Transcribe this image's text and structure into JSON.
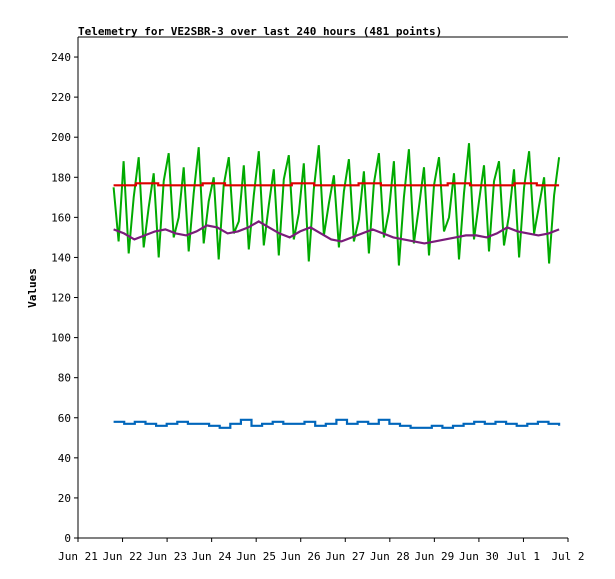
{
  "chart_data": {
    "type": "line",
    "title": "Telemetry for VE2SBR-3 over last 240 hours (481 points)",
    "xlabel": "",
    "ylabel": "Values",
    "ylim": [
      0,
      250
    ],
    "yticks": [
      0,
      20,
      40,
      60,
      80,
      100,
      120,
      140,
      160,
      180,
      200,
      220,
      240
    ],
    "xlim_days": [
      21,
      32
    ],
    "xticks": [
      {
        "day": 21,
        "label": "Jun 21"
      },
      {
        "day": 22,
        "label": "Jun 22"
      },
      {
        "day": 23,
        "label": "Jun 23"
      },
      {
        "day": 24,
        "label": "Jun 24"
      },
      {
        "day": 25,
        "label": "Jun 25"
      },
      {
        "day": 26,
        "label": "Jun 26"
      },
      {
        "day": 27,
        "label": "Jun 27"
      },
      {
        "day": 28,
        "label": "Jun 28"
      },
      {
        "day": 29,
        "label": "Jun 29"
      },
      {
        "day": 30,
        "label": "Jun 30"
      },
      {
        "day": 31,
        "label": "Jul 1"
      },
      {
        "day": 32,
        "label": "Jul 2"
      }
    ],
    "x_range_days": [
      21.8,
      31.8
    ],
    "grid": false,
    "legend": "none",
    "series": [
      {
        "color": "#00aa00",
        "style": "noisy-oscillation",
        "band": [
          137,
          197
        ],
        "values": [
          175,
          148,
          188,
          142,
          170,
          190,
          145,
          165,
          182,
          140,
          178,
          192,
          150,
          160,
          185,
          143,
          172,
          195,
          147,
          168,
          180,
          139,
          176,
          190,
          152,
          158,
          186,
          144,
          171,
          193,
          146,
          166,
          184,
          141,
          179,
          191,
          149,
          162,
          187,
          138,
          174,
          196,
          151,
          167,
          181,
          145,
          173,
          189,
          148,
          159,
          183,
          142,
          177,
          192,
          150,
          163,
          188,
          136,
          170,
          194,
          147,
          165,
          185,
          141,
          176,
          190,
          153,
          160,
          182,
          139,
          172,
          197,
          149,
          168,
          186,
          143,
          178,
          188,
          146,
          161,
          184,
          140,
          175,
          193,
          152,
          166,
          180,
          137,
          171,
          190
        ]
      },
      {
        "color": "#dd0000",
        "style": "flat",
        "values": [
          176,
          177,
          176,
          176,
          177,
          176,
          176,
          176,
          177,
          176,
          176,
          177,
          176,
          176,
          176,
          177,
          176,
          176,
          177,
          176,
          176
        ]
      },
      {
        "color": "#7a1c7a",
        "style": "smooth",
        "values": [
          154,
          152,
          149,
          151,
          153,
          154,
          152,
          151,
          153,
          156,
          155,
          152,
          153,
          155,
          158,
          155,
          152,
          150,
          153,
          155,
          152,
          149,
          148,
          150,
          152,
          154,
          152,
          150,
          149,
          148,
          147,
          148,
          149,
          150,
          151,
          151,
          150,
          152,
          155,
          153,
          152,
          151,
          152,
          154
        ]
      },
      {
        "color": "#0066bb",
        "style": "flat",
        "values": [
          58,
          57,
          58,
          57,
          56,
          57,
          58,
          57,
          57,
          56,
          55,
          57,
          59,
          56,
          57,
          58,
          57,
          57,
          58,
          56,
          57,
          59,
          57,
          58,
          57,
          59,
          57,
          56,
          55,
          55,
          56,
          55,
          56,
          57,
          58,
          57,
          58,
          57,
          56,
          57,
          58,
          57,
          56
        ]
      }
    ]
  }
}
